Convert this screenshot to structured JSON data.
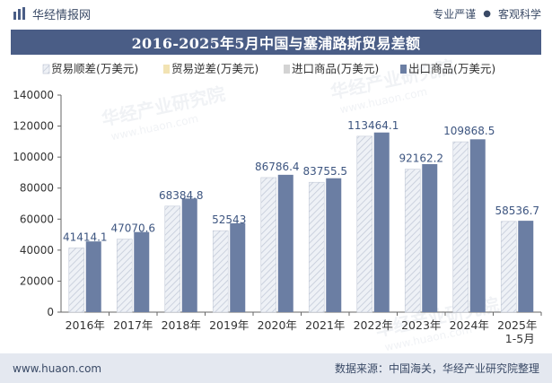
{
  "header": {
    "brand_name": "华经情报网",
    "tag_left": "专业严谨",
    "tag_sep": "●",
    "tag_right": "客观科学"
  },
  "chart_data": {
    "type": "bar",
    "title": "2016-2025年5月中国与塞浦路斯贸易差额",
    "categories": [
      "2016年",
      "2017年",
      "2018年",
      "2019年",
      "2020年",
      "2021年",
      "2022年",
      "2023年",
      "2024年",
      "2025年\n1-5月"
    ],
    "series": [
      {
        "name": "贸易顺差(万美元)",
        "values": [
          41414.1,
          47070.6,
          68384.8,
          52543,
          86786.4,
          83755.5,
          113464.1,
          92162.2,
          109868.5,
          58536.7
        ],
        "color": "#dfe4ec",
        "pattern": "diagonal-hatch",
        "data_labels": true
      },
      {
        "name": "贸易逆差(万美元)",
        "values": [
          0,
          0,
          0,
          0,
          0,
          0,
          0,
          0,
          0,
          0
        ],
        "color": "#f2e3b3"
      },
      {
        "name": "进口商品(万美元)",
        "values": [
          4200,
          4600,
          4900,
          4800,
          1800,
          2600,
          2400,
          3300,
          1600,
          400
        ],
        "color": "#d3d3d3"
      },
      {
        "name": "出口商品(万美元)",
        "values": [
          45614.1,
          51670.6,
          73284.8,
          57343,
          88586.4,
          86355.5,
          115864.1,
          95462.2,
          111468.5,
          58936.7
        ],
        "color": "#6b7ea3"
      }
    ],
    "ylim": [
      0,
      140000
    ],
    "yticks": [
      0,
      20000,
      40000,
      60000,
      80000,
      100000,
      120000,
      140000
    ],
    "grid": false,
    "legend_position": "top"
  },
  "watermark": {
    "text": "华经产业研究院",
    "url": "www.huaon.com"
  },
  "footer": {
    "website": "www.huaon.com",
    "source": "数据来源：中国海关，华经产业研究院整理"
  }
}
